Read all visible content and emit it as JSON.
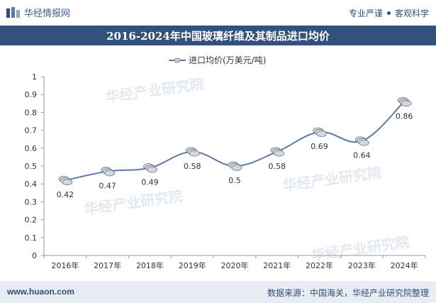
{
  "header": {
    "logo_text": "华经情报网",
    "tagline_left": "专业严谨",
    "tagline_right": "客观科学"
  },
  "watermark": "华经产业研究院",
  "footer": {
    "website": "www.huaon.com",
    "source": "数据来源：中国海关，华经产业研究院整理"
  },
  "colors": {
    "title_bar": "#34507c",
    "line": "#5b7aa8",
    "footer_bg": "#e8ecf3",
    "brand": "#2f4d78"
  },
  "chart_data": {
    "type": "line",
    "title": "2016-2024年中国玻璃纤维及其制品进口均价",
    "categories": [
      "2016年",
      "2017年",
      "2018年",
      "2019年",
      "2020年",
      "2021年",
      "2022年",
      "2023年",
      "2024年"
    ],
    "series": [
      {
        "name": "进口均价(万美元/吨)",
        "values": [
          0.42,
          0.47,
          0.49,
          0.58,
          0.5,
          0.58,
          0.69,
          0.64,
          0.86
        ]
      }
    ],
    "data_labels": [
      "0.42",
      "0.47",
      "0.49",
      "0.58",
      "0.5",
      "0.58",
      "0.69",
      "0.64",
      "0.86"
    ],
    "ylim": [
      0,
      1
    ],
    "yticks": [
      "0",
      "0.1",
      "0.2",
      "0.3",
      "0.4",
      "0.5",
      "0.6",
      "0.7",
      "0.8",
      "0.9",
      "1"
    ],
    "legend_position": "top-center",
    "grid": false
  }
}
